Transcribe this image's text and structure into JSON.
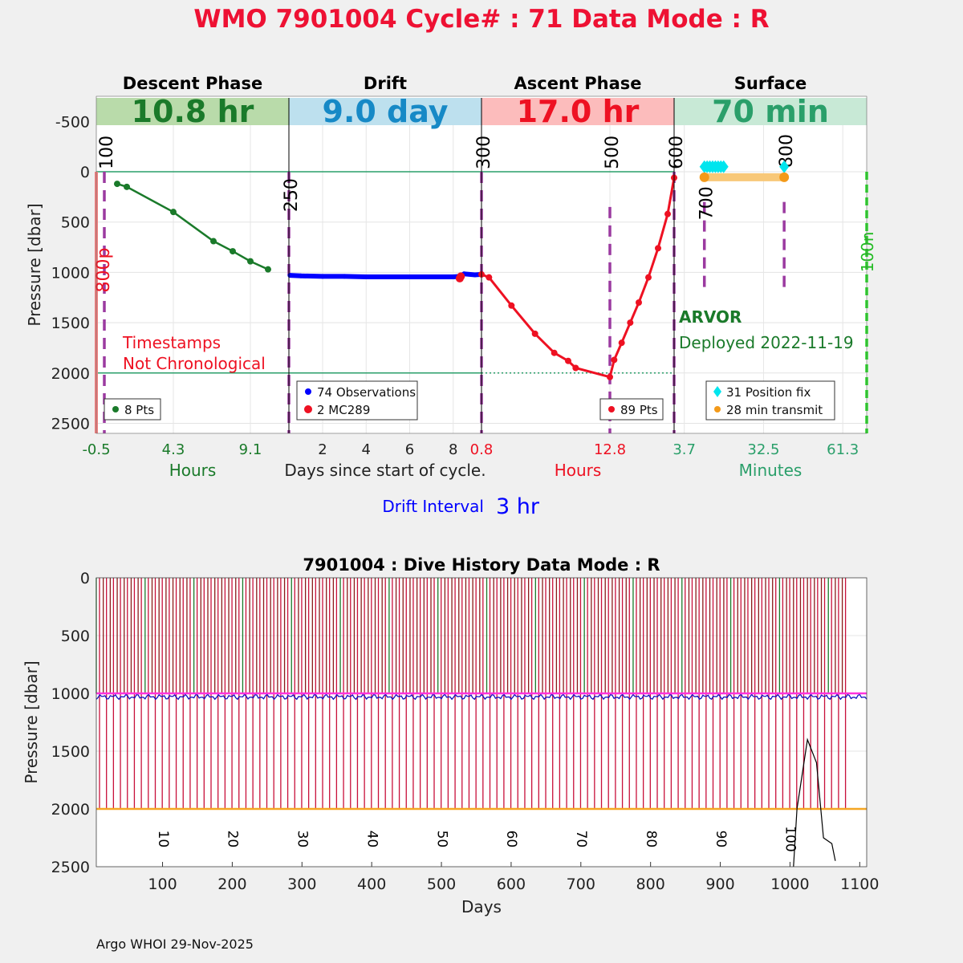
{
  "title": "WMO 7901004   Cycle# : 71   Data Mode : R",
  "footer": "Argo WHOI 29-Nov-2025",
  "colors": {
    "descent": "#1a7a2a",
    "drift": "#0000ff",
    "ascent": "#ee1122",
    "surface_fix": "#00e5ee",
    "surface_tx": "#f39a1a",
    "purple": "#9b3aa0",
    "title_red": "#ee1133"
  },
  "chart_data": [
    {
      "type": "line",
      "title": "WMO 7901004   Cycle# : 71   Data Mode : R",
      "ylabel": "Pressure [dbar]",
      "yreversed": true,
      "ylim": [
        -750,
        2600
      ],
      "yticks": [
        "-500",
        "0",
        "500",
        "1000",
        "1500",
        "2000",
        "2500"
      ],
      "ytick_values": [
        -500,
        0,
        500,
        1000,
        1500,
        2000,
        2500
      ],
      "panels": [
        {
          "id": "descent",
          "header": "Descent Phase",
          "duration": "10.8 hr",
          "xlabel": "Hours",
          "xticks": [
            "-0.5",
            "4.3",
            "9.1"
          ],
          "xtick_values": [
            -0.5,
            4.3,
            9.1
          ],
          "xlim": [
            -0.5,
            11.5
          ],
          "legend": [
            "8 Pts"
          ],
          "series": [
            {
              "name": "8 Pts",
              "x": [
                0.8,
                1.4,
                4.3,
                6.8,
                8.0,
                9.1,
                10.2
              ],
              "y": [
                120,
                150,
                400,
                690,
                790,
                890,
                970
              ]
            }
          ],
          "vlines": [
            {
              "label": "100",
              "x": 0.0
            },
            {
              "label": "800p",
              "x": -0.5
            }
          ],
          "annotation": [
            "Timestamps",
            "Not Chronological"
          ]
        },
        {
          "id": "drift",
          "header": "Drift",
          "duration": "9.0 day",
          "xlabel": "Days since start of cycle.",
          "xticks": [
            "2",
            "4",
            "6",
            "8"
          ],
          "xtick_values": [
            2,
            4,
            6,
            8
          ],
          "xlim": [
            0.45,
            9.3
          ],
          "legend": [
            "74 Observations",
            "2 MC289"
          ],
          "series": [
            {
              "name": "74 Observations",
              "x": [
                0.5,
                1.0,
                2.0,
                3.0,
                4.0,
                5.0,
                6.0,
                7.0,
                8.0,
                8.3,
                8.5,
                9.0,
                9.3
              ],
              "y": [
                1030,
                1035,
                1040,
                1040,
                1045,
                1045,
                1045,
                1045,
                1045,
                1040,
                1015,
                1025,
                1020
              ]
            },
            {
              "name": "2 MC289",
              "x": [
                8.3,
                8.35
              ],
              "y": [
                1060,
                1040
              ]
            }
          ],
          "vlines": [
            {
              "label": "250",
              "x": 0.45
            }
          ],
          "drift_interval_label": "Drift Interval",
          "drift_interval_value": "3 hr"
        },
        {
          "id": "ascent",
          "header": "Ascent Phase",
          "duration": "17.0 hr",
          "xlabel": "Hours",
          "xticks": [
            "0.8",
            "12.8"
          ],
          "xtick_values": [
            0.8,
            12.8
          ],
          "xlim": [
            0.8,
            18.8
          ],
          "legend": [
            "89 Pts"
          ],
          "series": [
            {
              "name": "89 Pts",
              "x": [
                0.8,
                1.5,
                3.6,
                5.8,
                7.6,
                8.9,
                9.6,
                12.8,
                13.2,
                13.9,
                14.7,
                15.5,
                16.4,
                17.3,
                18.2,
                18.8
              ],
              "y": [
                1020,
                1050,
                1330,
                1610,
                1800,
                1880,
                1950,
                2040,
                1870,
                1700,
                1500,
                1300,
                1050,
                760,
                420,
                60
              ]
            }
          ],
          "vlines": [
            {
              "label": "300",
              "x": 0.8
            },
            {
              "label": "500",
              "x": 12.8
            },
            {
              "label": "600",
              "x": 18.8
            }
          ]
        },
        {
          "id": "surface",
          "header": "Surface",
          "duration": "70 min",
          "xlabel": "Minutes",
          "xticks": [
            "3.7",
            "32.5",
            "61.3"
          ],
          "xtick_values": [
            3.7,
            32.5,
            61.3
          ],
          "xlim": [
            0,
            70
          ],
          "legend": [
            "31 Position fix",
            "28 min transmit"
          ],
          "series": [
            {
              "name": "31 Position fix",
              "x": [
                11,
                12,
                13,
                14,
                15,
                16,
                17,
                18,
                40
              ],
              "y": [
                -50,
                -50,
                -50,
                -50,
                -50,
                -50,
                -50,
                -50,
                -50
              ]
            },
            {
              "name": "28 min transmit",
              "x": [
                11,
                40
              ],
              "y": [
                55,
                55
              ]
            }
          ],
          "vlines": [
            {
              "label": "700",
              "x": 11
            },
            {
              "label": "800",
              "x": 40
            },
            {
              "label": "100n",
              "x": 70
            }
          ],
          "float_model": "ARVOR",
          "deployed": "Deployed 2022-11-19"
        }
      ]
    },
    {
      "type": "line",
      "title": "7901004 : Dive History      Data Mode : R",
      "xlabel": "Days",
      "ylabel": "Pressure [dbar]",
      "xlim": [
        5,
        1110
      ],
      "ylim": [
        0,
        2500
      ],
      "yreversed": true,
      "xticks": [
        "100",
        "200",
        "300",
        "400",
        "500",
        "600",
        "700",
        "800",
        "900",
        "1000",
        "1100"
      ],
      "xtick_values": [
        100,
        200,
        300,
        400,
        500,
        600,
        700,
        800,
        900,
        1000,
        1100
      ],
      "yticks": [
        "0",
        "500",
        "1000",
        "1500",
        "2000",
        "2500"
      ],
      "ytick_values": [
        0,
        500,
        1000,
        1500,
        2000,
        2500
      ],
      "cycle_labels": [
        "10",
        "20",
        "30",
        "40",
        "50",
        "60",
        "70",
        "80",
        "90",
        "100"
      ],
      "cycle_label_x": [
        90,
        190,
        290,
        390,
        490,
        590,
        690,
        790,
        890,
        990
      ],
      "cycle_interval_days": 10,
      "first_cycle_day": 5,
      "cycles": 108,
      "drift_pressure": 1000,
      "profile_pressure": 2000,
      "series": [
        {
          "name": "bathymetry",
          "x": [
            1005,
            1010,
            1025,
            1038,
            1048,
            1060,
            1065
          ],
          "y": [
            2500,
            2000,
            1400,
            1600,
            2250,
            2300,
            2450
          ]
        }
      ]
    }
  ]
}
